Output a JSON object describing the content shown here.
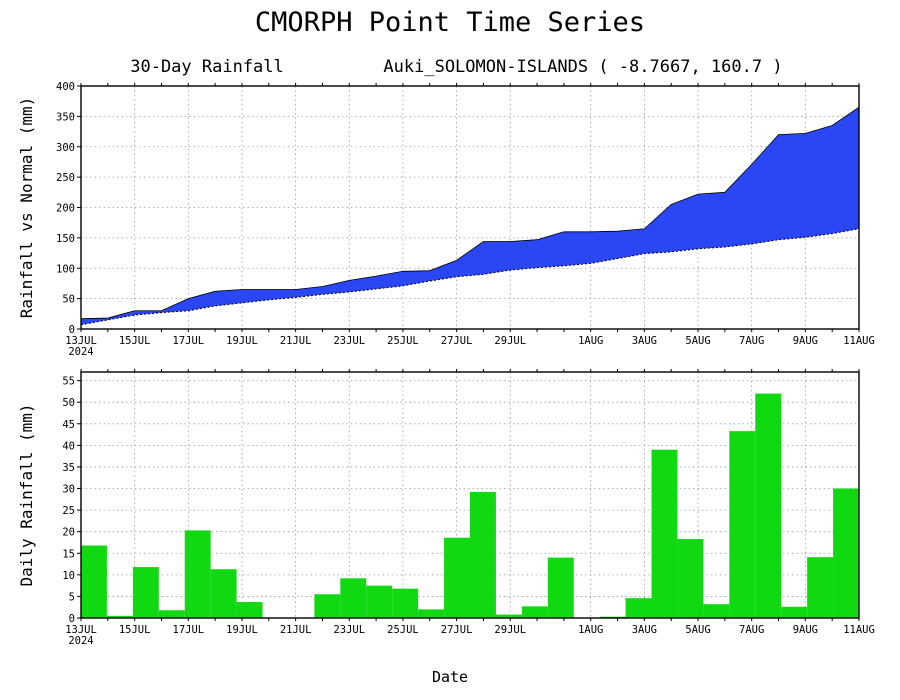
{
  "title": "CMORPH Point Time Series",
  "subtitle_left": "30-Day Rainfall",
  "subtitle_right": "Auki_SOLOMON-ISLANDS ( -8.7667, 160.7 )",
  "xlabel": "Date",
  "colors": {
    "cumulative_fill": "#2b47f5",
    "daily_bar": "#11d911"
  },
  "chart_data": [
    {
      "type": "area",
      "ylabel": "Rainfall vs Normal (mm)",
      "ylim": [
        0,
        400
      ],
      "yticks": [
        0,
        50,
        100,
        150,
        200,
        250,
        300,
        350,
        400
      ],
      "x_tick_labels": [
        "13JUL",
        "15JUL",
        "17JUL",
        "19JUL",
        "21JUL",
        "23JUL",
        "25JUL",
        "27JUL",
        "29JUL",
        "1AUG",
        "3AUG",
        "5AUG",
        "7AUG",
        "9AUG",
        "11AUG"
      ],
      "x_tick_days": [
        0,
        2,
        4,
        6,
        8,
        10,
        12,
        14,
        16,
        19,
        21,
        23,
        25,
        27,
        29
      ],
      "year_label": "2024",
      "grid": true,
      "series": [
        {
          "name": "",
          "values": [
            17,
            18,
            30,
            30,
            50,
            62,
            65,
            65,
            65,
            70,
            80,
            87,
            95,
            96,
            113,
            144,
            144,
            147,
            160,
            160,
            161,
            165,
            205,
            222,
            225,
            271,
            320,
            322,
            335,
            365
          ]
        },
        {
          "name": "",
          "values": [
            7,
            15,
            23,
            27,
            30,
            38,
            43,
            48,
            52,
            57,
            61,
            66,
            71,
            79,
            86,
            90,
            97,
            101,
            104,
            108,
            116,
            124,
            127,
            132,
            135,
            140,
            147,
            151,
            157,
            165
          ]
        }
      ]
    },
    {
      "type": "bar",
      "ylabel": "Daily Rainfall (mm)",
      "ylim": [
        0,
        57
      ],
      "yticks": [
        0,
        5,
        10,
        15,
        20,
        25,
        30,
        35,
        40,
        45,
        50,
        55
      ],
      "x_tick_labels": [
        "13JUL",
        "15JUL",
        "17JUL",
        "19JUL",
        "21JUL",
        "23JUL",
        "25JUL",
        "27JUL",
        "29JUL",
        "1AUG",
        "3AUG",
        "5AUG",
        "7AUG",
        "9AUG",
        "11AUG"
      ],
      "x_tick_days": [
        0,
        2,
        4,
        6,
        8,
        10,
        12,
        14,
        16,
        19,
        21,
        23,
        25,
        27,
        29
      ],
      "year_label": "2024",
      "grid": true,
      "values": [
        16.8,
        0.5,
        11.8,
        1.8,
        20.3,
        11.3,
        3.7,
        0.1,
        0.1,
        5.5,
        9.2,
        7.5,
        6.8,
        2.0,
        18.6,
        29.2,
        0.8,
        2.7,
        14.0,
        0.1,
        0.3,
        4.6,
        39.0,
        18.3,
        3.2,
        43.3,
        52.0,
        2.6,
        14.1,
        30.0
      ]
    }
  ]
}
